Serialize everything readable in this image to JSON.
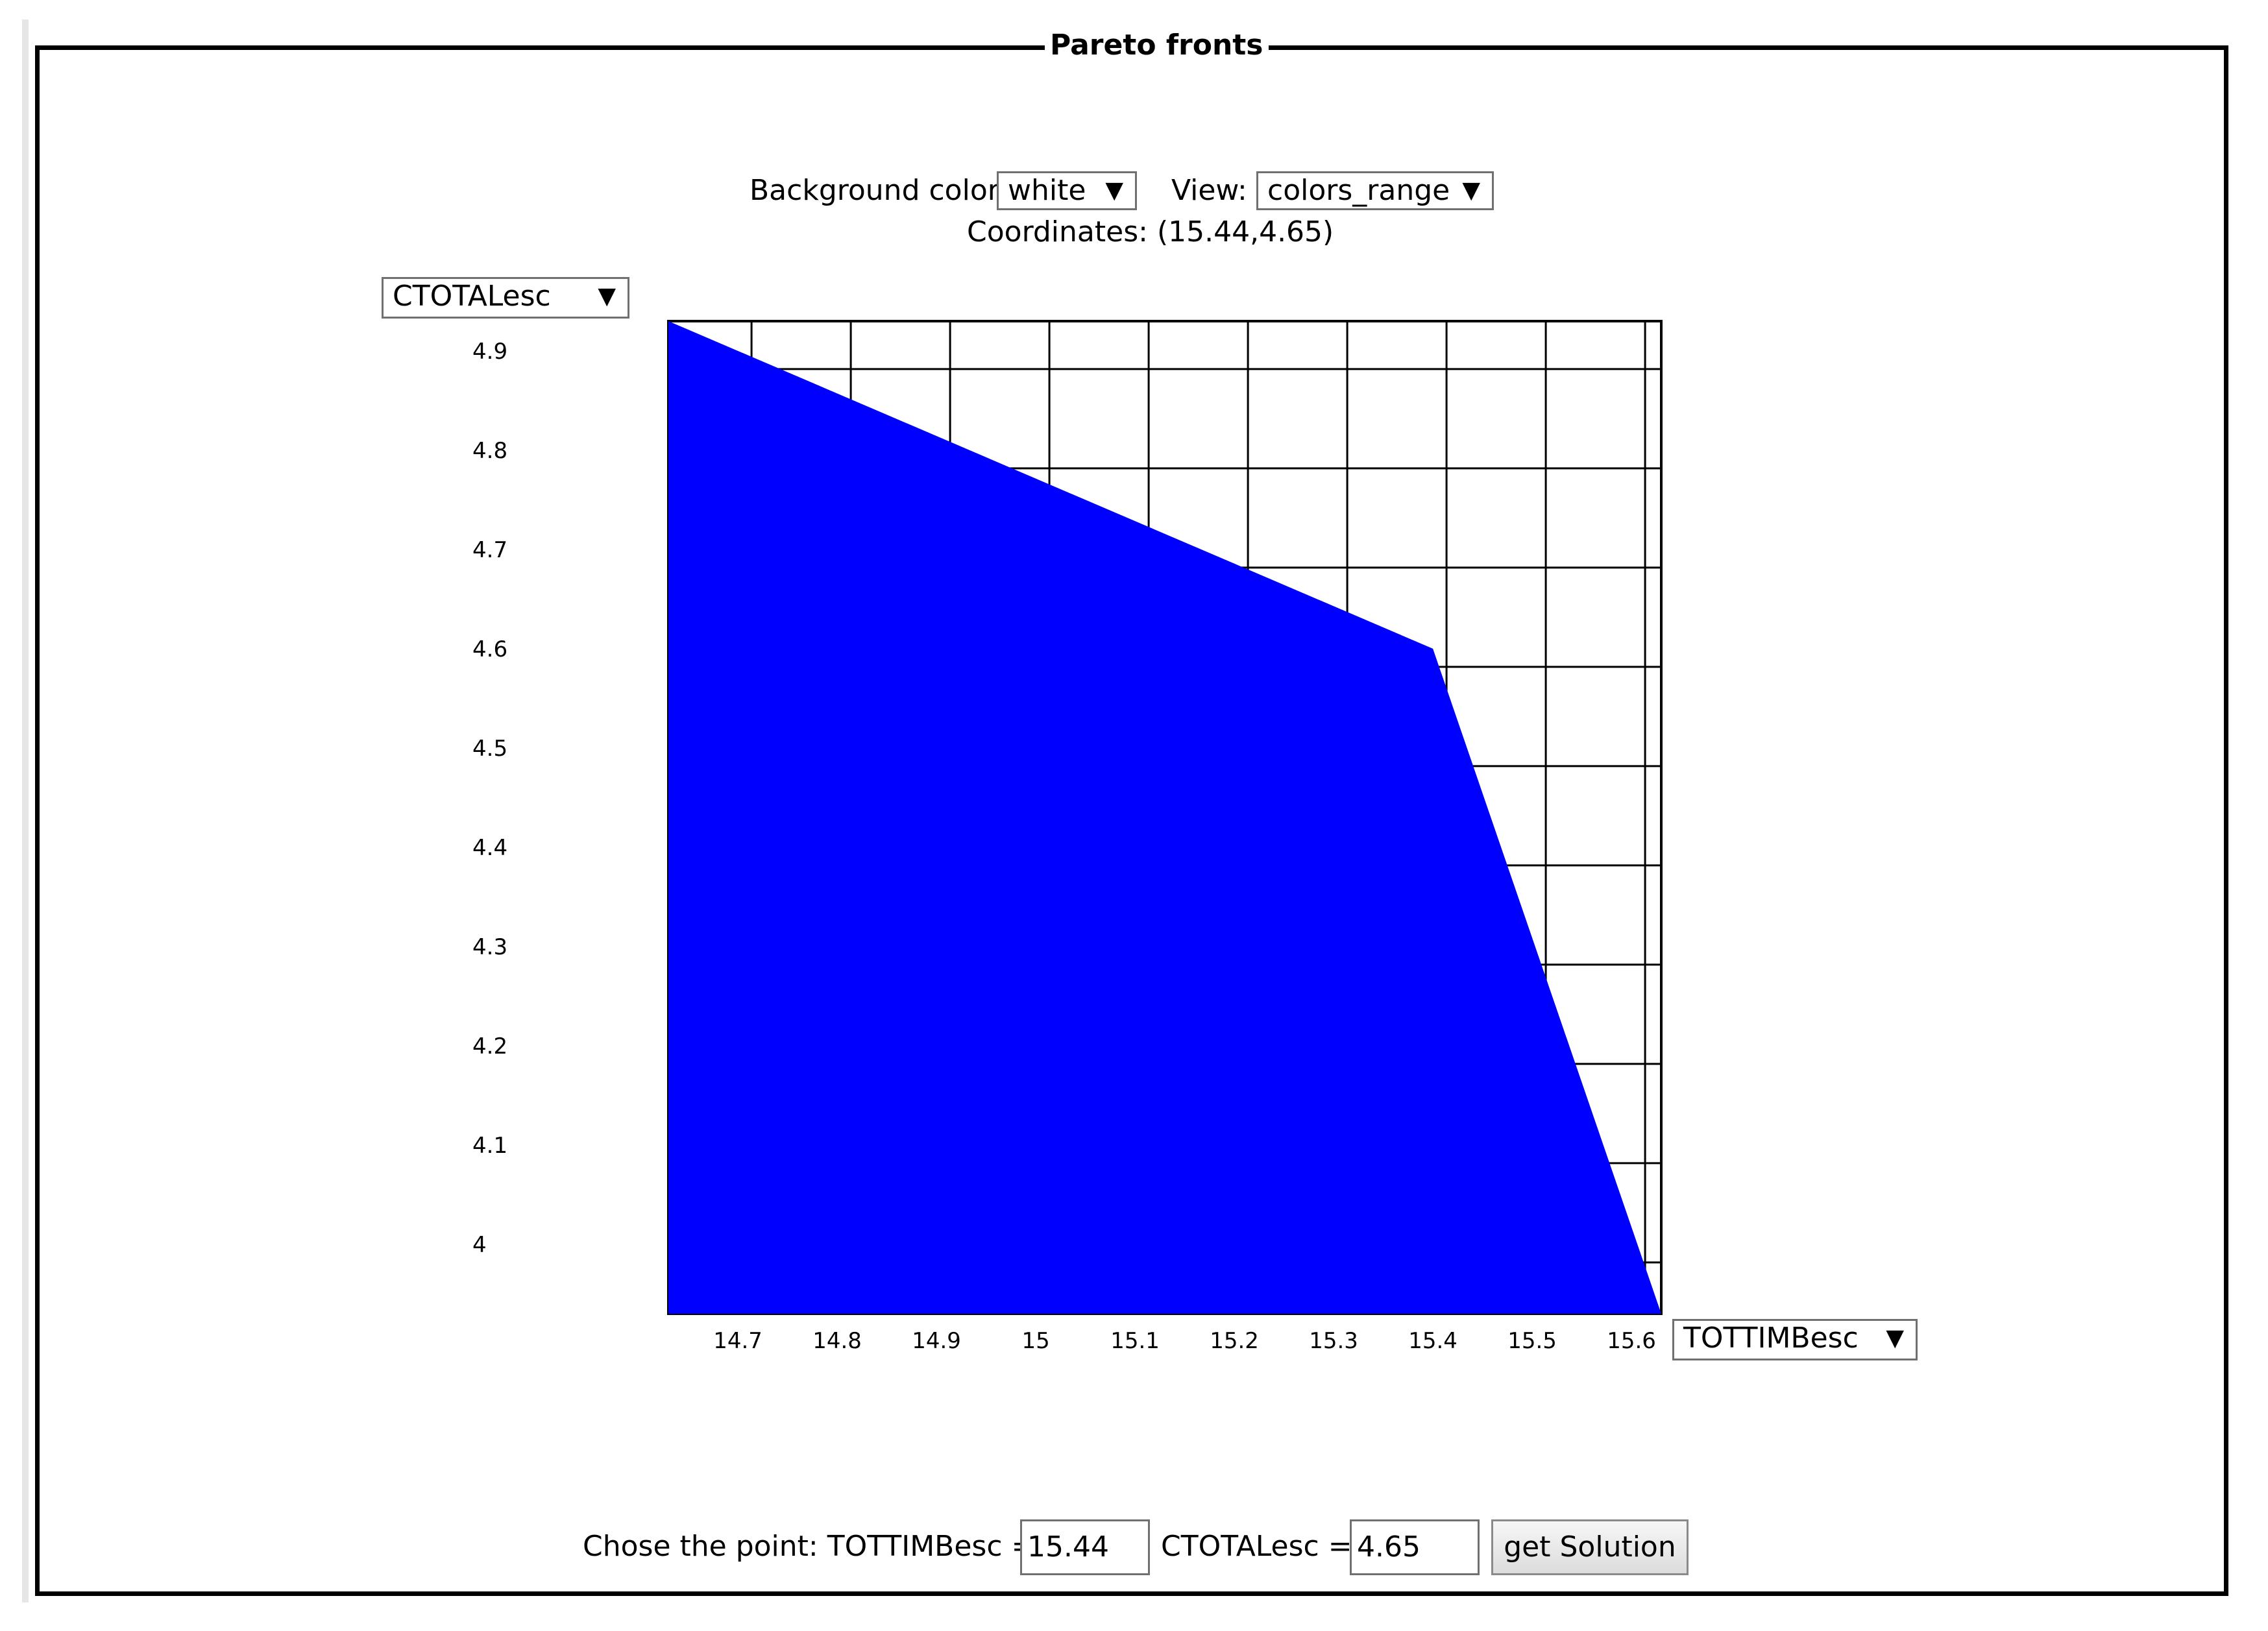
{
  "panel": {
    "title": "Pareto fronts"
  },
  "controls": {
    "background_label": "Background color:",
    "background_value": "white",
    "view_label": "View:",
    "view_value": "colors_range",
    "coordinates_label": "Coordinates:",
    "coordinates_value": "(15.44,4.65)",
    "dropdown_arrow": "▼"
  },
  "axes": {
    "y_selector_value": "CTOTALesc",
    "x_selector_value": "TOTTIMBesc"
  },
  "colors": {
    "fill": "#0000ff",
    "grid": "#000000",
    "background": "#ffffff"
  },
  "chart_data": {
    "type": "area",
    "title": "",
    "xlabel": "TOTTIMBesc",
    "ylabel": "CTOTALesc",
    "xlim": [
      14.63,
      15.63
    ],
    "ylim": [
      3.93,
      4.93
    ],
    "x_ticks": [
      "14.7",
      "14.8",
      "14.9",
      "15",
      "15.1",
      "15.2",
      "15.3",
      "15.4",
      "15.5",
      "15.6"
    ],
    "x_tick_values": [
      14.7,
      14.8,
      14.9,
      15.0,
      15.1,
      15.2,
      15.3,
      15.4,
      15.5,
      15.6
    ],
    "y_ticks": [
      "4.9",
      "4.8",
      "4.7",
      "4.6",
      "4.5",
      "4.4",
      "4.3",
      "4.2",
      "4.1",
      "4"
    ],
    "y_tick_values": [
      4.9,
      4.8,
      4.7,
      4.6,
      4.5,
      4.4,
      4.3,
      4.2,
      4.1,
      4.0
    ],
    "grid": true,
    "series": [
      {
        "x": [
          14.63,
          15.4,
          15.63
        ],
        "y": [
          4.93,
          4.6,
          3.93
        ]
      }
    ]
  },
  "footer": {
    "prompt_label": "Chose the point: TOTTIMBesc =",
    "x_value": "15.44",
    "y_label": "CTOTALesc =",
    "y_value": "4.65",
    "button_label": "get Solution"
  }
}
